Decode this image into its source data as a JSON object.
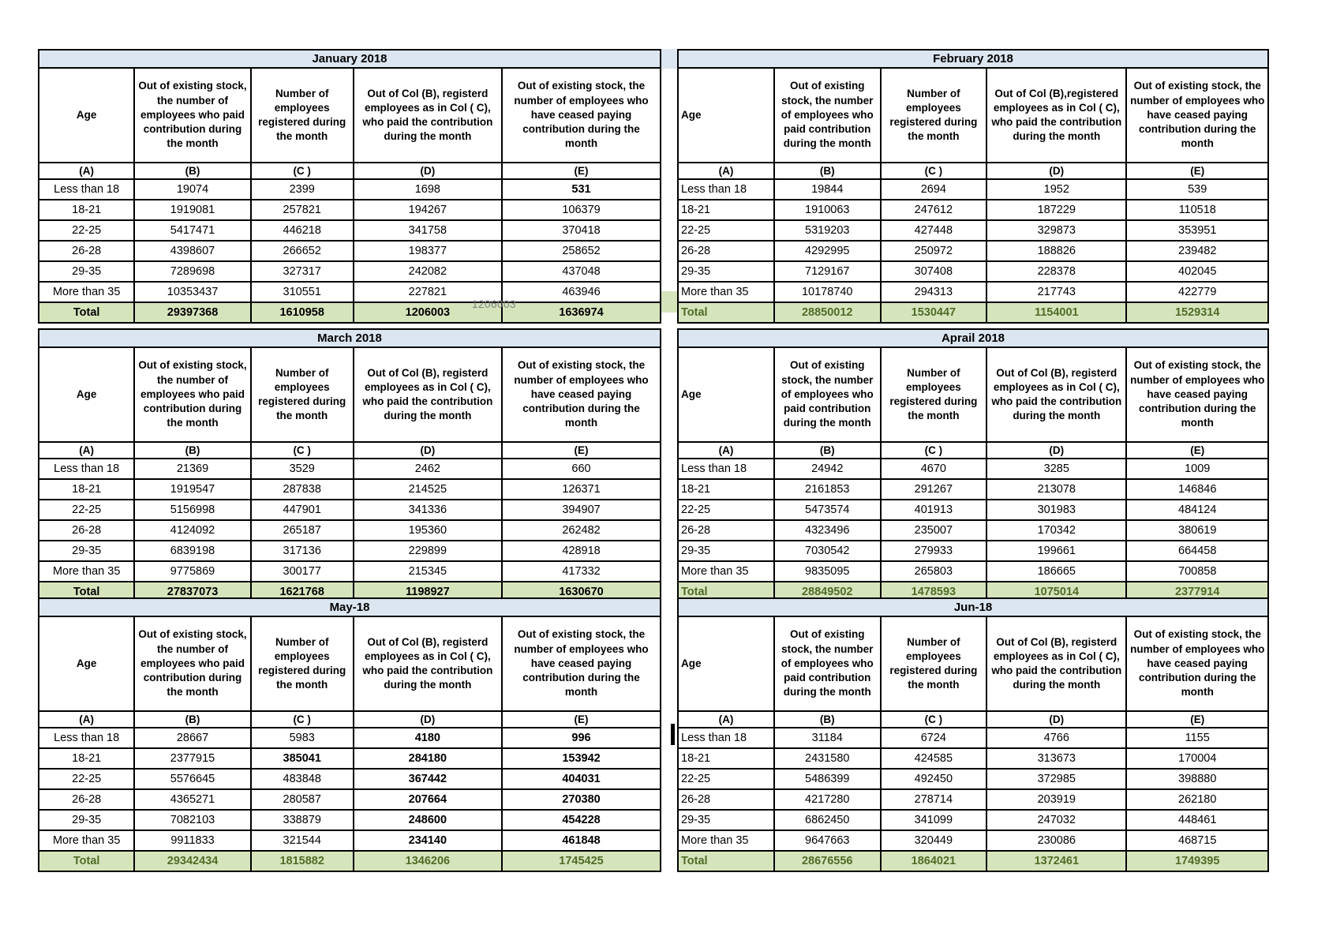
{
  "colors": {
    "title_bg": "#dce6f1",
    "total_bg": "#d6e4bc",
    "green_text": "#4f6b27",
    "artifact_gray": "#7f7f7f",
    "border": "#000000"
  },
  "shared": {
    "sub_headers": [
      "(A)",
      "(B)",
      "(C )",
      "(D)",
      "(E)"
    ],
    "age_labels": [
      "Less than 18",
      "18-21",
      "22-25",
      "26-28",
      "29-35",
      "More than 35"
    ],
    "total_label": "Total"
  },
  "artifacts": {
    "jan_total_duplicate": "1206003"
  },
  "tables": [
    {
      "id": "january-2018",
      "title": "January 2018",
      "style": "left",
      "headers": {
        "a": "Age",
        "b": "Out of existing stock, the number of employees who paid contribution during the month",
        "c": "Number of employees registered during the month",
        "d": "Out of Col (B), registerd employees as in Col ( C), who paid the contribution during the month",
        "e": "Out of existing stock, the number of  employees  who have ceased paying contribution during the month"
      },
      "rows": [
        [
          "19074",
          "2399",
          "1698",
          "531"
        ],
        [
          "1919081",
          "257821",
          "194267",
          "106379"
        ],
        [
          "5417471",
          "446218",
          "341758",
          "370418"
        ],
        [
          "4398607",
          "266652",
          "198377",
          "258652"
        ],
        [
          "7289698",
          "327317",
          "242082",
          "437048"
        ],
        [
          "10353437",
          "310551",
          "227821",
          "463946"
        ]
      ],
      "totals": [
        "29397368",
        "1610958",
        "1206003",
        "1636974"
      ],
      "green_cells": [
        [
          1,
          3
        ],
        [
          2,
          3
        ],
        [
          3,
          3
        ],
        [
          4,
          3
        ],
        [
          5,
          3
        ]
      ],
      "green_bold_cells": [],
      "bold_cells": [
        [
          0,
          3
        ]
      ],
      "subheader_green_cols": [],
      "total_color": "black"
    },
    {
      "id": "february-2018",
      "title": "February 2018",
      "style": "right",
      "headers": {
        "a": "Age",
        "b": "Out of existing stock, the number of employees who paid contribution during the month",
        "c": "Number of employees registered during the month",
        "d": "Out of Col (B),registered employees as in Col ( C), who paid the contribution during the month",
        "e": "Out of existing stock, the number of employees  who have ceased paying contribution during the month"
      },
      "rows": [
        [
          "19844",
          "2694",
          "1952",
          "539"
        ],
        [
          "1910063",
          "247612",
          "187229",
          "110518"
        ],
        [
          "5319203",
          "427448",
          "329873",
          "353951"
        ],
        [
          "4292995",
          "250972",
          "188826",
          "239482"
        ],
        [
          "7129167",
          "307408",
          "228378",
          "402045"
        ],
        [
          "10178740",
          "294313",
          "217743",
          "422779"
        ]
      ],
      "totals": [
        "28850012",
        "1530447",
        "1154001",
        "1529314"
      ],
      "green_cells": [
        [
          1,
          3
        ],
        [
          2,
          3
        ],
        [
          3,
          3
        ],
        [
          4,
          3
        ],
        [
          5,
          3
        ]
      ],
      "green_bold_cells": [],
      "bold_cells": [],
      "subheader_green_cols": [],
      "total_color": "green"
    },
    {
      "id": "march-2018",
      "title": "March 2018",
      "style": "left",
      "headers": {
        "a": "Age",
        "b": "Out of existing stock, the number of employees who paid contribution during the month",
        "c": "Number of employees registered during the month",
        "d": "Out of Col (B), registerd employees as in Col ( C), who paid the contribution during the month",
        "e": "Out of existing stock, the number of  employees  who have ceased paying contribution during the month"
      },
      "rows": [
        [
          "21369",
          "3529",
          "2462",
          "660"
        ],
        [
          "1919547",
          "287838",
          "214525",
          "126371"
        ],
        [
          "5156998",
          "447901",
          "341336",
          "394907"
        ],
        [
          "4124092",
          "265187",
          "195360",
          "262482"
        ],
        [
          "6839198",
          "317136",
          "229899",
          "428918"
        ],
        [
          "9775869",
          "300177",
          "215345",
          "417332"
        ]
      ],
      "totals": [
        "27837073",
        "1621768",
        "1198927",
        "1630670"
      ],
      "green_cells": [
        [
          1,
          3
        ],
        [
          2,
          3
        ],
        [
          3,
          3
        ],
        [
          4,
          3
        ],
        [
          5,
          3
        ]
      ],
      "green_bold_cells": [],
      "bold_cells": [],
      "subheader_green_cols": [
        4
      ],
      "total_color": "black"
    },
    {
      "id": "aprail-2018",
      "title": "Aprail 2018",
      "style": "right",
      "headers": {
        "a": "Age",
        "b": "Out of existing stock, the number of employees who paid contribution during the month",
        "c": "Number of employees registered during the month",
        "d": "Out of Col (B), registerd employees as in Col ( C), who paid the contribution during the month",
        "e": "Out of existing stock, the number of employees  who have ceased paying contribution during the month"
      },
      "rows": [
        [
          "24942",
          "4670",
          "3285",
          "1009"
        ],
        [
          "2161853",
          "291267",
          "213078",
          "146846"
        ],
        [
          "5473574",
          "401913",
          "301983",
          "484124"
        ],
        [
          "4323496",
          "235007",
          "170342",
          "380619"
        ],
        [
          "7030542",
          "279933",
          "199661",
          "664458"
        ],
        [
          "9835095",
          "265803",
          "186665",
          "700858"
        ]
      ],
      "totals": [
        "28849502",
        "1478593",
        "1075014",
        "2377914"
      ],
      "green_cells": [],
      "green_bold_cells": [],
      "bold_cells": [],
      "subheader_green_cols": [],
      "total_color": "green"
    },
    {
      "id": "may-18",
      "title": "May-18",
      "style": "left",
      "headers": {
        "a": "Age",
        "b": "Out of existing stock, the number of employees who paid contribution during the month",
        "c": "Number of employees registered during the month",
        "d": "Out of Col (B), registerd employees as in Col ( C), who paid the contribution during the month",
        "e": "Out of existing stock, the number of  employees  who have ceased paying contribution during the month"
      },
      "rows": [
        [
          "28667",
          "5983",
          "4180",
          "996"
        ],
        [
          "2377915",
          "385041",
          "284180",
          "153942"
        ],
        [
          "5576645",
          "483848",
          "367442",
          "404031"
        ],
        [
          "4365271",
          "280587",
          "207664",
          "270380"
        ],
        [
          "7082103",
          "338879",
          "248600",
          "454228"
        ],
        [
          "9911833",
          "321544",
          "234140",
          "461848"
        ]
      ],
      "totals": [
        "29342434",
        "1815882",
        "1346206",
        "1745425"
      ],
      "green_cells": [],
      "green_bold_cells": [
        [
          0,
          2
        ],
        [
          0,
          3
        ],
        [
          1,
          1
        ],
        [
          1,
          2
        ],
        [
          1,
          3
        ],
        [
          2,
          2
        ],
        [
          2,
          3
        ],
        [
          3,
          2
        ],
        [
          3,
          3
        ],
        [
          4,
          2
        ],
        [
          4,
          3
        ],
        [
          5,
          2
        ],
        [
          5,
          3
        ]
      ],
      "bold_cells": [],
      "subheader_green_cols": [],
      "total_color": "green"
    },
    {
      "id": "jun-18",
      "title": "Jun-18",
      "style": "right",
      "headers": {
        "a": "Age",
        "b": "Out of existing stock, the number of employees who paid contribution during the month",
        "c": "Number of employees registered during the month",
        "d": "Out of Col (B), registerd employees as in Col ( C), who paid the contribution during the month",
        "e": "Out of existing stock, the number of employees  who have ceased paying contribution during the month"
      },
      "rows": [
        [
          "31184",
          "6724",
          "4766",
          "1155"
        ],
        [
          "2431580",
          "424585",
          "313673",
          "170004"
        ],
        [
          "5486399",
          "492450",
          "372985",
          "398880"
        ],
        [
          "4217280",
          "278714",
          "203919",
          "262180"
        ],
        [
          "6862450",
          "341099",
          "247032",
          "448461"
        ],
        [
          "9647663",
          "320449",
          "230086",
          "468715"
        ]
      ],
      "totals": [
        "28676556",
        "1864021",
        "1372461",
        "1749395"
      ],
      "green_cells": [],
      "green_bold_cells": [],
      "bold_cells": [],
      "subheader_green_cols": [],
      "total_color": "green"
    }
  ]
}
